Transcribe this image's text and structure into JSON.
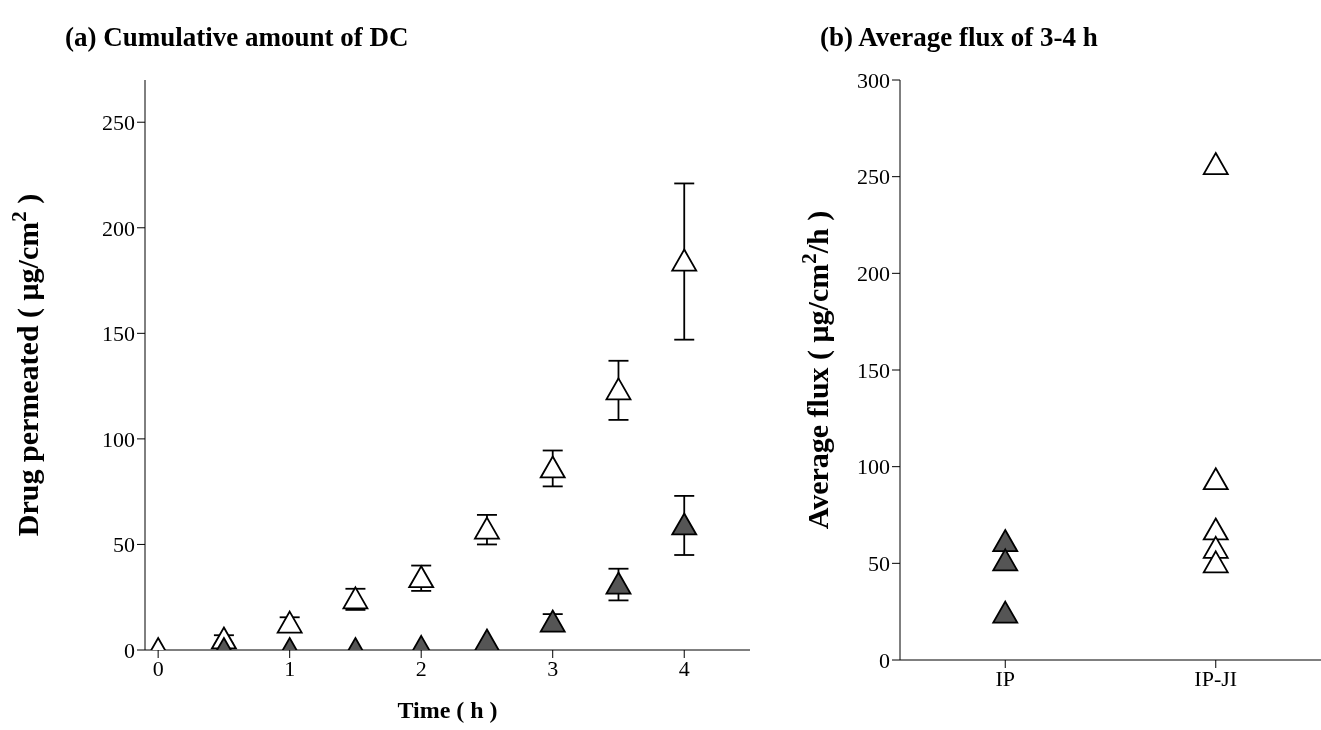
{
  "chart_data": [
    {
      "type": "scatter",
      "title": "(a) Cumulative amount of DC",
      "xlabel": "Time ( h )",
      "ylabel": "Drug permeated ( μg/cm$^{2}$ )",
      "x": [
        0,
        0.5,
        1,
        1.5,
        2,
        2.5,
        3,
        3.5,
        4
      ],
      "xlim": [
        -0.1,
        4.5
      ],
      "xticks": [
        0,
        1,
        2,
        3,
        4
      ],
      "ylim": [
        0,
        270
      ],
      "yticks": [
        0,
        50,
        100,
        150,
        200,
        250
      ],
      "marker": "triangle",
      "series": [
        {
          "color": "#ffffff",
          "values": [
            0,
            5,
            12.5,
            24,
            34,
            57,
            86,
            123,
            184
          ],
          "errors": [
            null,
            2,
            3,
            5,
            6,
            7,
            8.5,
            14,
            37
          ]
        },
        {
          "color": "#555555",
          "values": [
            null,
            0,
            0,
            0,
            1,
            4,
            13,
            31,
            59
          ],
          "errors": [
            null,
            null,
            null,
            null,
            null,
            null,
            4,
            7.5,
            14
          ]
        }
      ]
    },
    {
      "type": "scatter",
      "title": "(b) Average flux of 3-4 h",
      "ylabel": "Average flux ( μg/cm$^{2}$/h )",
      "categories": [
        "IP",
        "IP-JI"
      ],
      "ylim": [
        0,
        300
      ],
      "yticks": [
        0,
        50,
        100,
        150,
        200,
        250,
        300
      ],
      "marker": "triangle",
      "series": [
        {
          "color": "#555555",
          "x": [
            "IP",
            "IP",
            "IP"
          ],
          "values": [
            61,
            51,
            24
          ]
        },
        {
          "color": "#ffffff",
          "x": [
            "IP-JI",
            "IP-JI",
            "IP-JI",
            "IP-JI",
            "IP-JI"
          ],
          "values": [
            256,
            93,
            67,
            57.5,
            50
          ]
        }
      ]
    }
  ]
}
